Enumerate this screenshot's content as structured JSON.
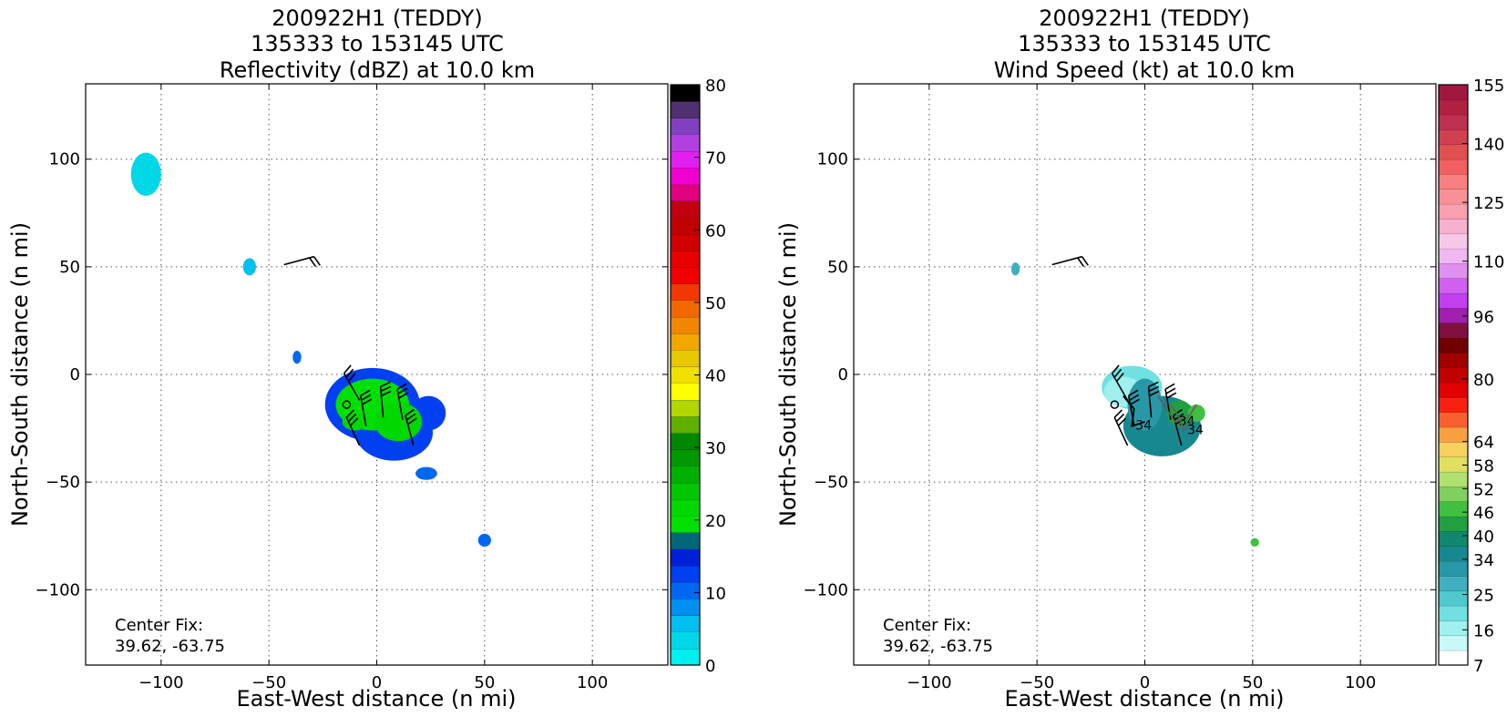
{
  "chart_data": [
    {
      "type": "heatmap",
      "title_lines": [
        "200922H1 (TEDDY)",
        "135333 to 153145 UTC",
        "Reflectivity (dBZ) at 10.0 km"
      ],
      "xlabel": "East-West distance (n mi)",
      "ylabel": "North-South distance (n mi)",
      "xlim": [
        -135,
        135
      ],
      "ylim": [
        -135,
        135
      ],
      "xticks": [
        -100,
        -50,
        0,
        50,
        100
      ],
      "yticks": [
        100,
        50,
        0,
        -50,
        -100
      ],
      "xtick_labels": [
        "−100",
        "−50",
        "0",
        "50",
        "100"
      ],
      "ytick_labels": [
        "100",
        "50",
        "0",
        "−50",
        "−100"
      ],
      "grid": true,
      "annotation": [
        "Center Fix:",
        "39.62, -63.75"
      ],
      "colorbar": {
        "ticks": [
          0,
          10,
          20,
          30,
          40,
          50,
          60,
          70,
          80
        ],
        "tick_labels": [
          "0",
          "10",
          "20",
          "30",
          "40",
          "50",
          "60",
          "70",
          "80"
        ],
        "colors": [
          "#00f0f0",
          "#00d8e8",
          "#00c0f0",
          "#0090f0",
          "#0068f0",
          "#0040f0",
          "#0020d8",
          "#006878",
          "#00e000",
          "#00d800",
          "#00c800",
          "#00b000",
          "#009800",
          "#008800",
          "#60b000",
          "#b0d800",
          "#ffff00",
          "#f0e000",
          "#e8c800",
          "#f0a800",
          "#f08800",
          "#f06800",
          "#f03800",
          "#f00000",
          "#e80000",
          "#d00000",
          "#c00000",
          "#c00010",
          "#e00080",
          "#f000d0",
          "#e020f0",
          "#b040e0",
          "#8040c0",
          "#503070",
          "#000000"
        ]
      },
      "echo_cells": [
        {
          "center": [
            -107,
            93
          ],
          "extent": [
            7,
            10
          ],
          "color": "#00d8e8"
        },
        {
          "center": [
            -59,
            50
          ],
          "extent": [
            3,
            4
          ],
          "color": "#00c0f0"
        },
        {
          "center": [
            -37,
            8
          ],
          "extent": [
            2,
            3
          ],
          "color": "#0068f0"
        },
        {
          "center": [
            -2,
            -14
          ],
          "extent": [
            22,
            17
          ],
          "color": "#0040f0"
        },
        {
          "center": [
            8,
            -27
          ],
          "extent": [
            18,
            13
          ],
          "color": "#0040f0"
        },
        {
          "center": [
            24,
            -18
          ],
          "extent": [
            8,
            8
          ],
          "color": "#0040f0"
        },
        {
          "center": [
            -2,
            -14
          ],
          "extent": [
            17,
            12
          ],
          "color": "#00e000"
        },
        {
          "center": [
            10,
            -22
          ],
          "extent": [
            11,
            9
          ],
          "color": "#00d800"
        },
        {
          "center": [
            -10,
            -22
          ],
          "extent": [
            6,
            4
          ],
          "color": "#00d800"
        },
        {
          "center": [
            23,
            -46
          ],
          "extent": [
            5,
            3
          ],
          "color": "#0068f0"
        },
        {
          "center": [
            50,
            -77
          ],
          "extent": [
            3,
            3
          ],
          "color": "#0068f0"
        }
      ],
      "wind_barbs": [
        {
          "x": -43,
          "y": 51,
          "speed": 20,
          "from_deg": 75
        },
        {
          "x": -8,
          "y": -12,
          "speed": 30,
          "from_deg": 330
        },
        {
          "x": -5,
          "y": -24,
          "speed": 30,
          "from_deg": 350
        },
        {
          "x": 3,
          "y": -20,
          "speed": 30,
          "from_deg": 355
        },
        {
          "x": 12,
          "y": -21,
          "speed": 30,
          "from_deg": 350
        },
        {
          "x": 17,
          "y": -33,
          "speed": 30,
          "from_deg": 345
        },
        {
          "x": -8,
          "y": -33,
          "speed": 30,
          "from_deg": 335
        }
      ],
      "calm_points": [
        {
          "x": -14,
          "y": -14
        }
      ]
    },
    {
      "type": "heatmap",
      "title_lines": [
        "200922H1 (TEDDY)",
        "135333 to 153145 UTC",
        "Wind Speed (kt) at 10.0 km"
      ],
      "xlabel": "East-West distance (n mi)",
      "ylabel": "North-South distance (n mi)",
      "xlim": [
        -135,
        135
      ],
      "ylim": [
        -135,
        135
      ],
      "xticks": [
        -100,
        -50,
        0,
        50,
        100
      ],
      "yticks": [
        100,
        50,
        0,
        -50,
        -100
      ],
      "xtick_labels": [
        "−100",
        "−50",
        "0",
        "50",
        "100"
      ],
      "ytick_labels": [
        "100",
        "50",
        "0",
        "−50",
        "−100"
      ],
      "grid": true,
      "annotation": [
        "Center Fix:",
        "39.62, -63.75"
      ],
      "colorbar": {
        "ticks": [
          7,
          16,
          25,
          34,
          40,
          46,
          52,
          58,
          64,
          80,
          96,
          110,
          125,
          140,
          155
        ],
        "tick_labels": [
          "7",
          "16",
          "25",
          "34",
          "40",
          "46",
          "52",
          "58",
          "64",
          "80",
          "96",
          "110",
          "125",
          "140",
          "155"
        ],
        "colors": [
          "#ffffff",
          "#c8f8f8",
          "#a0f0f0",
          "#70e0e0",
          "#50c8d0",
          "#40b0c0",
          "#2898a8",
          "#188890",
          "#108870",
          "#20a040",
          "#40c040",
          "#80d060",
          "#b0e070",
          "#e0e060",
          "#f8d060",
          "#f8a040",
          "#f86030",
          "#f82010",
          "#e00000",
          "#c00000",
          "#a00000",
          "#700000",
          "#801040",
          "#a020b0",
          "#c040f0",
          "#d060f0",
          "#e090f0",
          "#f0b8f0",
          "#f8c8e8",
          "#f8b0d0",
          "#f8a0b0",
          "#f89098",
          "#f88080",
          "#f06060",
          "#e05050",
          "#d04050",
          "#c03050",
          "#b02040",
          "#a01840"
        ]
      },
      "echo_cells": [
        {
          "center": [
            -60,
            49
          ],
          "extent": [
            2,
            3
          ],
          "color": "#40b0c0"
        },
        {
          "center": [
            -6,
            -6
          ],
          "extent": [
            14,
            10
          ],
          "color": "#70e0e0"
        },
        {
          "center": [
            -10,
            -8
          ],
          "extent": [
            9,
            7
          ],
          "color": "#a0f0f0"
        },
        {
          "center": [
            8,
            -24
          ],
          "extent": [
            18,
            14
          ],
          "color": "#188890"
        },
        {
          "center": [
            0,
            -14
          ],
          "extent": [
            8,
            12
          ],
          "color": "#2898a8"
        },
        {
          "center": [
            16,
            -18
          ],
          "extent": [
            6,
            6
          ],
          "color": "#20a040"
        },
        {
          "center": [
            24,
            -18
          ],
          "extent": [
            4,
            4
          ],
          "color": "#40c040"
        },
        {
          "center": [
            51,
            -78
          ],
          "extent": [
            2,
            2
          ],
          "color": "#40c040"
        }
      ],
      "wind_barbs": [
        {
          "x": -43,
          "y": 51,
          "speed": 20,
          "from_deg": 75
        },
        {
          "x": -8,
          "y": -12,
          "speed": 30,
          "from_deg": 330
        },
        {
          "x": -5,
          "y": -24,
          "speed": 30,
          "from_deg": 350
        },
        {
          "x": 3,
          "y": -20,
          "speed": 30,
          "from_deg": 355
        },
        {
          "x": 12,
          "y": -21,
          "speed": 30,
          "from_deg": 350
        },
        {
          "x": 17,
          "y": -33,
          "speed": 30,
          "from_deg": 345
        },
        {
          "x": -8,
          "y": -33,
          "speed": 30,
          "from_deg": 335
        }
      ],
      "calm_points": [
        {
          "x": -14,
          "y": -14
        }
      ],
      "contours": [
        {
          "label": "34",
          "color": "#000000",
          "points": [
            [
              -10,
              -10
            ],
            [
              -5,
              -16
            ],
            [
              -6,
              -24
            ],
            [
              0,
              -22
            ]
          ]
        },
        {
          "label": "34",
          "color": "#606060",
          "points": [
            [
              6,
              -10
            ],
            [
              10,
              -16
            ],
            [
              14,
              -22
            ],
            [
              20,
              -20
            ],
            [
              24,
              -14
            ]
          ]
        },
        {
          "label": "34",
          "color": "#606060",
          "points": [
            [
              12,
              -14
            ],
            [
              16,
              -20
            ],
            [
              18,
              -26
            ],
            [
              22,
              -22
            ]
          ]
        }
      ]
    }
  ]
}
